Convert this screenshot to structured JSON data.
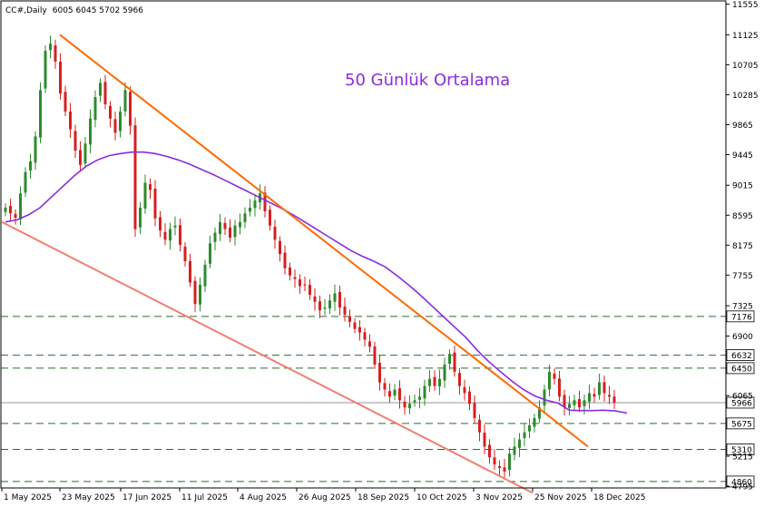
{
  "header": {
    "symbol": "CC#,Daily",
    "ohlc": "6005 6045 5702 5966"
  },
  "colors": {
    "up_candle": "#2e8b2e",
    "down_candle": "#d62020",
    "ma_line": "#8a2be2",
    "trend_upper": "#ff6a00",
    "trend_lower": "#f08070",
    "level_line": "#2e6b2e",
    "current_price_line": "#999999",
    "annotation": "#8a2be2"
  },
  "chart_data": {
    "type": "candlestick",
    "symbol": "CC#",
    "timeframe": "Daily",
    "ylim": [
      4770,
      11600
    ],
    "y_ticks": [
      11555,
      11125,
      10705,
      10285,
      9865,
      9445,
      9015,
      8595,
      8175,
      7755,
      7325,
      6900,
      6065,
      5215,
      4795
    ],
    "x_ticks": [
      "1 May 2025",
      "23 May 2025",
      "17 Jun 2025",
      "11 Jul 2025",
      "4 Aug 2025",
      "26 Aug 2025",
      "18 Sep 2025",
      "10 Oct 2025",
      "3 Nov 2025",
      "25 Nov 2025",
      "18 Dec 2025"
    ],
    "annotation": "50 Günlük Ortalama",
    "levels": [
      7176,
      6632,
      6450,
      5675,
      5310,
      4860
    ],
    "current_price": 5966,
    "close_series": [
      8700,
      8620,
      8560,
      8900,
      9200,
      9350,
      9700,
      10350,
      10900,
      11000,
      10750,
      10300,
      10050,
      9800,
      9500,
      9300,
      9600,
      9950,
      10250,
      10450,
      10150,
      9950,
      9750,
      10050,
      10350,
      9850,
      8400,
      8700,
      9050,
      8950,
      8550,
      8380,
      8250,
      8400,
      8450,
      8180,
      7950,
      7650,
      7350,
      7620,
      7900,
      8200,
      8350,
      8500,
      8400,
      8280,
      8450,
      8500,
      8620,
      8700,
      8800,
      8900,
      8650,
      8450,
      8250,
      8050,
      7850,
      7750,
      7700,
      7600,
      7620,
      7480,
      7380,
      7260,
      7300,
      7400,
      7500,
      7300,
      7200,
      7100,
      7000,
      6950,
      6850,
      6750,
      6500,
      6250,
      6150,
      6050,
      6150,
      6000,
      5900,
      5950,
      6000,
      6050,
      6200,
      6300,
      6200,
      6300,
      6500,
      6650,
      6400,
      6200,
      6100,
      5950,
      5750,
      5550,
      5350,
      5200,
      5100,
      5050,
      5000,
      5250,
      5350,
      5450,
      5550,
      5650,
      5750,
      5900,
      6150,
      6400,
      6300,
      6050,
      5900,
      5950,
      6000,
      5900,
      6000,
      6100,
      6050,
      6250,
      6100,
      6050,
      5966
    ],
    "ma50_series": [
      8500,
      8530,
      8600,
      8700,
      8850,
      9000,
      9150,
      9280,
      9370,
      9430,
      9460,
      9480,
      9480,
      9460,
      9420,
      9370,
      9310,
      9240,
      9170,
      9090,
      9010,
      8930,
      8850,
      8770,
      8690,
      8600,
      8500,
      8400,
      8300,
      8200,
      8100,
      8020,
      7950,
      7870,
      7750,
      7620,
      7480,
      7330,
      7180,
      7030,
      6880,
      6700,
      6540,
      6400,
      6270,
      6150,
      6060,
      6000,
      5960,
      5860,
      5855,
      5855,
      5860,
      5850,
      5820
    ],
    "trendlines": [
      {
        "from": [
          "23 May 2025",
          11125
        ],
        "to": [
          "1 Dec 2025",
          5350
        ]
      },
      {
        "from": [
          "1 May 2025",
          8500
        ],
        "to": [
          "25 Nov 2025",
          4700
        ]
      }
    ]
  }
}
